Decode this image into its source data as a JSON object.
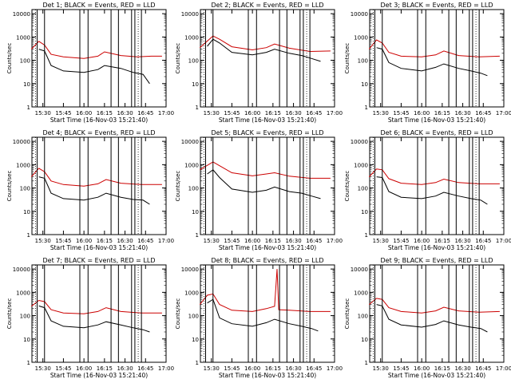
{
  "colors": {
    "events": "#000000",
    "lld": "#cc0000",
    "axes": "#000000",
    "background": "#ffffff"
  },
  "chart_data": [
    {
      "type": "line",
      "title": "Det 1; BLACK = Events, RED = LLD",
      "xlabel": "Start Time (16-Nov-03 15:21:40)",
      "ylabel": "Counts/sec",
      "yscale": "log",
      "ylim": [
        1,
        15000
      ],
      "x_ticks": [
        "15:30",
        "15:45",
        "16:00",
        "16:15",
        "16:30",
        "16:45",
        "17:00"
      ],
      "y_ticks": [
        "1",
        "10",
        "100",
        "1000",
        "10000"
      ],
      "series": [
        {
          "color": "red",
          "values": [
            [
              15.36,
              300
            ],
            [
              15.45,
              650
            ],
            [
              15.52,
              450
            ],
            [
              15.6,
              180
            ],
            [
              15.75,
              140
            ],
            [
              16.0,
              120
            ],
            [
              16.17,
              150
            ],
            [
              16.25,
              230
            ],
            [
              16.45,
              160
            ],
            [
              16.65,
              140
            ],
            [
              16.82,
              150
            ],
            [
              16.95,
              150
            ]
          ]
        },
        {
          "color": "black",
          "values": [
            [
              15.45,
              300
            ],
            [
              15.52,
              250
            ],
            [
              15.6,
              60
            ],
            [
              15.75,
              35
            ],
            [
              16.0,
              30
            ],
            [
              16.17,
              40
            ],
            [
              16.25,
              60
            ],
            [
              16.45,
              45
            ],
            [
              16.6,
              30
            ],
            [
              16.72,
              25
            ],
            [
              16.8,
              10
            ]
          ]
        }
      ]
    },
    {
      "type": "line",
      "title": "Det 2; BLACK = Events, RED = LLD",
      "xlabel": "Start Time (16-Nov-03 15:21:40)",
      "ylabel": "Counts/sec",
      "yscale": "log",
      "ylim": [
        1,
        15000
      ],
      "x_ticks": [
        "15:30",
        "15:45",
        "16:00",
        "16:15",
        "16:30",
        "16:45",
        "17:00"
      ],
      "y_ticks": [
        "1",
        "10",
        "100",
        "1000",
        "10000"
      ],
      "series": [
        {
          "color": "red",
          "values": [
            [
              15.36,
              350
            ],
            [
              15.52,
              1100
            ],
            [
              15.6,
              800
            ],
            [
              15.75,
              380
            ],
            [
              16.0,
              280
            ],
            [
              16.17,
              350
            ],
            [
              16.27,
              500
            ],
            [
              16.45,
              330
            ],
            [
              16.7,
              240
            ],
            [
              16.95,
              250
            ]
          ]
        },
        {
          "color": "black",
          "values": [
            [
              15.45,
              400
            ],
            [
              15.52,
              800
            ],
            [
              15.6,
              550
            ],
            [
              15.75,
              220
            ],
            [
              16.0,
              170
            ],
            [
              16.17,
              220
            ],
            [
              16.27,
              300
            ],
            [
              16.45,
              200
            ],
            [
              16.6,
              160
            ],
            [
              16.72,
              120
            ],
            [
              16.83,
              90
            ]
          ]
        }
      ]
    },
    {
      "type": "line",
      "title": "Det 3; BLACK = Events, RED = LLD",
      "xlabel": "Start Time (16-Nov-03 15:21:40)",
      "ylabel": "Counts/sec",
      "yscale": "log",
      "ylim": [
        1,
        15000
      ],
      "x_ticks": [
        "15:30",
        "15:45",
        "16:00",
        "16:15",
        "16:30",
        "16:45",
        "17:00"
      ],
      "y_ticks": [
        "1",
        "10",
        "100",
        "1000",
        "10000"
      ],
      "series": [
        {
          "color": "red",
          "values": [
            [
              15.36,
              300
            ],
            [
              15.45,
              750
            ],
            [
              15.52,
              550
            ],
            [
              15.6,
              220
            ],
            [
              15.75,
              150
            ],
            [
              16.0,
              140
            ],
            [
              16.17,
              170
            ],
            [
              16.27,
              250
            ],
            [
              16.45,
              160
            ],
            [
              16.7,
              140
            ],
            [
              16.95,
              150
            ]
          ]
        },
        {
          "color": "black",
          "values": [
            [
              15.45,
              350
            ],
            [
              15.52,
              300
            ],
            [
              15.6,
              80
            ],
            [
              15.75,
              45
            ],
            [
              16.0,
              35
            ],
            [
              16.17,
              50
            ],
            [
              16.27,
              70
            ],
            [
              16.45,
              45
            ],
            [
              16.6,
              35
            ],
            [
              16.72,
              28
            ],
            [
              16.8,
              22
            ]
          ]
        }
      ]
    },
    {
      "type": "line",
      "title": "Det 4; BLACK = Events, RED = LLD",
      "xlabel": "Start Time (16-Nov-03 15:21:40)",
      "ylabel": "Counts/sec",
      "yscale": "log",
      "ylim": [
        1,
        15000
      ],
      "x_ticks": [
        "15:30",
        "15:45",
        "16:00",
        "16:15",
        "16:30",
        "16:45",
        "17:00"
      ],
      "y_ticks": [
        "1",
        "10",
        "100",
        "1000",
        "10000"
      ],
      "series": [
        {
          "color": "red",
          "values": [
            [
              15.36,
              300
            ],
            [
              15.45,
              700
            ],
            [
              15.52,
              500
            ],
            [
              15.6,
              200
            ],
            [
              15.75,
              140
            ],
            [
              16.0,
              120
            ],
            [
              16.17,
              150
            ],
            [
              16.27,
              230
            ],
            [
              16.45,
              160
            ],
            [
              16.7,
              140
            ],
            [
              16.95,
              140
            ]
          ]
        },
        {
          "color": "black",
          "values": [
            [
              15.45,
              300
            ],
            [
              15.52,
              260
            ],
            [
              15.6,
              60
            ],
            [
              15.75,
              35
            ],
            [
              16.0,
              30
            ],
            [
              16.17,
              40
            ],
            [
              16.27,
              60
            ],
            [
              16.45,
              40
            ],
            [
              16.6,
              32
            ],
            [
              16.72,
              30
            ],
            [
              16.8,
              20
            ]
          ]
        }
      ]
    },
    {
      "type": "line",
      "title": "Det 5; BLACK = Events, RED = LLD",
      "xlabel": "Start Time (16-Nov-03 15:21:40)",
      "ylabel": "Counts/sec",
      "yscale": "log",
      "ylim": [
        1,
        15000
      ],
      "x_ticks": [
        "15:30",
        "15:45",
        "16:00",
        "16:15",
        "16:30",
        "16:45",
        "17:00"
      ],
      "y_ticks": [
        "1",
        "10",
        "100",
        "1000",
        "10000"
      ],
      "series": [
        {
          "color": "red",
          "values": [
            [
              15.36,
              600
            ],
            [
              15.52,
              1300
            ],
            [
              15.6,
              900
            ],
            [
              15.75,
              450
            ],
            [
              16.0,
              330
            ],
            [
              16.17,
              400
            ],
            [
              16.27,
              450
            ],
            [
              16.45,
              320
            ],
            [
              16.7,
              260
            ],
            [
              16.95,
              260
            ]
          ]
        },
        {
          "color": "black",
          "values": [
            [
              15.45,
              400
            ],
            [
              15.52,
              600
            ],
            [
              15.6,
              280
            ],
            [
              15.75,
              90
            ],
            [
              16.0,
              65
            ],
            [
              16.17,
              80
            ],
            [
              16.27,
              110
            ],
            [
              16.45,
              70
            ],
            [
              16.6,
              60
            ],
            [
              16.72,
              45
            ],
            [
              16.83,
              35
            ]
          ]
        }
      ]
    },
    {
      "type": "line",
      "title": "Det 6; BLACK = Events, RED = LLD",
      "xlabel": "Start Time (16-Nov-03 15:21:40)",
      "ylabel": "Counts/sec",
      "yscale": "log",
      "ylim": [
        1,
        15000
      ],
      "x_ticks": [
        "15:30",
        "15:45",
        "16:00",
        "16:15",
        "16:30",
        "16:45",
        "17:00"
      ],
      "y_ticks": [
        "1",
        "10",
        "100",
        "1000",
        "10000"
      ],
      "series": [
        {
          "color": "red",
          "values": [
            [
              15.36,
              300
            ],
            [
              15.45,
              650
            ],
            [
              15.52,
              600
            ],
            [
              15.6,
              250
            ],
            [
              15.75,
              160
            ],
            [
              16.0,
              140
            ],
            [
              16.17,
              170
            ],
            [
              16.27,
              240
            ],
            [
              16.45,
              170
            ],
            [
              16.7,
              150
            ],
            [
              16.95,
              150
            ]
          ]
        },
        {
          "color": "black",
          "values": [
            [
              15.45,
              300
            ],
            [
              15.52,
              280
            ],
            [
              15.6,
              70
            ],
            [
              15.75,
              40
            ],
            [
              16.0,
              35
            ],
            [
              16.17,
              45
            ],
            [
              16.27,
              65
            ],
            [
              16.45,
              45
            ],
            [
              16.6,
              35
            ],
            [
              16.72,
              30
            ],
            [
              16.8,
              20
            ]
          ]
        }
      ]
    },
    {
      "type": "line",
      "title": "Det 7; BLACK = Events, RED = LLD",
      "xlabel": "Start Time (16-Nov-03 15:21:40)",
      "ylabel": "Counts/sec",
      "yscale": "log",
      "ylim": [
        1,
        15000
      ],
      "x_ticks": [
        "15:30",
        "15:45",
        "16:00",
        "16:15",
        "16:30",
        "16:45",
        "17:00"
      ],
      "y_ticks": [
        "1",
        "10",
        "100",
        "1000",
        "10000"
      ],
      "series": [
        {
          "color": "red",
          "values": [
            [
              15.36,
              250
            ],
            [
              15.45,
              450
            ],
            [
              15.52,
              400
            ],
            [
              15.6,
              180
            ],
            [
              15.75,
              130
            ],
            [
              16.0,
              120
            ],
            [
              16.17,
              150
            ],
            [
              16.27,
              220
            ],
            [
              16.45,
              150
            ],
            [
              16.7,
              130
            ],
            [
              16.95,
              130
            ]
          ]
        },
        {
          "color": "black",
          "values": [
            [
              15.45,
              260
            ],
            [
              15.52,
              220
            ],
            [
              15.6,
              60
            ],
            [
              15.75,
              35
            ],
            [
              16.0,
              30
            ],
            [
              16.17,
              40
            ],
            [
              16.27,
              55
            ],
            [
              16.45,
              40
            ],
            [
              16.6,
              30
            ],
            [
              16.72,
              25
            ],
            [
              16.8,
              20
            ]
          ]
        }
      ]
    },
    {
      "type": "line",
      "title": "Det 8; BLACK = Events, RED = LLD",
      "xlabel": "Start Time (16-Nov-03 15:21:40)",
      "ylabel": "Counts/sec",
      "yscale": "log",
      "ylim": [
        1,
        15000
      ],
      "x_ticks": [
        "15:30",
        "15:45",
        "16:00",
        "16:15",
        "16:30",
        "16:45",
        "17:00"
      ],
      "y_ticks": [
        "1",
        "10",
        "100",
        "1000",
        "10000"
      ],
      "series": [
        {
          "color": "red",
          "values": [
            [
              15.36,
              300
            ],
            [
              15.45,
              750
            ],
            [
              15.52,
              850
            ],
            [
              15.6,
              300
            ],
            [
              15.75,
              170
            ],
            [
              16.0,
              150
            ],
            [
              16.17,
              200
            ],
            [
              16.27,
              250
            ],
            [
              16.3,
              10000
            ],
            [
              16.32,
              180
            ],
            [
              16.45,
              170
            ],
            [
              16.7,
              150
            ],
            [
              16.95,
              150
            ]
          ]
        },
        {
          "color": "black",
          "values": [
            [
              15.45,
              350
            ],
            [
              15.52,
              500
            ],
            [
              15.6,
              80
            ],
            [
              15.75,
              45
            ],
            [
              16.0,
              35
            ],
            [
              16.17,
              50
            ],
            [
              16.27,
              70
            ],
            [
              16.45,
              45
            ],
            [
              16.6,
              35
            ],
            [
              16.72,
              28
            ],
            [
              16.8,
              22
            ]
          ]
        }
      ]
    },
    {
      "type": "line",
      "title": "Det 9; BLACK = Events, RED = LLD",
      "xlabel": "Start Time (16-Nov-03 15:21:40)",
      "ylabel": "Counts/sec",
      "yscale": "log",
      "ylim": [
        1,
        15000
      ],
      "x_ticks": [
        "15:30",
        "15:45",
        "16:00",
        "16:15",
        "16:30",
        "16:45",
        "17:00"
      ],
      "y_ticks": [
        "1",
        "10",
        "100",
        "1000",
        "10000"
      ],
      "series": [
        {
          "color": "red",
          "values": [
            [
              15.36,
              300
            ],
            [
              15.45,
              550
            ],
            [
              15.52,
              500
            ],
            [
              15.6,
              220
            ],
            [
              15.75,
              150
            ],
            [
              16.0,
              130
            ],
            [
              16.17,
              160
            ],
            [
              16.27,
              230
            ],
            [
              16.45,
              160
            ],
            [
              16.7,
              140
            ],
            [
              16.95,
              150
            ]
          ]
        },
        {
          "color": "black",
          "values": [
            [
              15.45,
              300
            ],
            [
              15.52,
              260
            ],
            [
              15.6,
              70
            ],
            [
              15.75,
              40
            ],
            [
              16.0,
              32
            ],
            [
              16.17,
              42
            ],
            [
              16.27,
              60
            ],
            [
              16.45,
              40
            ],
            [
              16.6,
              32
            ],
            [
              16.72,
              28
            ],
            [
              16.8,
              20
            ]
          ]
        }
      ]
    }
  ]
}
